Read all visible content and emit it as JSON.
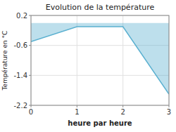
{
  "chart_data": {
    "type": "area",
    "title": "Evolution de la température",
    "xlabel": "heure par heure",
    "ylabel": "Température en °C",
    "x": [
      0,
      1,
      2,
      3
    ],
    "values": [
      -0.5,
      -0.1,
      -0.1,
      -1.9
    ],
    "color": "#5ab0d0",
    "xlim": [
      0,
      3
    ],
    "ylim": [
      -2.2,
      0.2
    ],
    "xticks": [
      0,
      1,
      2,
      3
    ],
    "yticks": [
      0.2,
      -0.6,
      -1.4,
      -2.2
    ],
    "grid": true
  }
}
